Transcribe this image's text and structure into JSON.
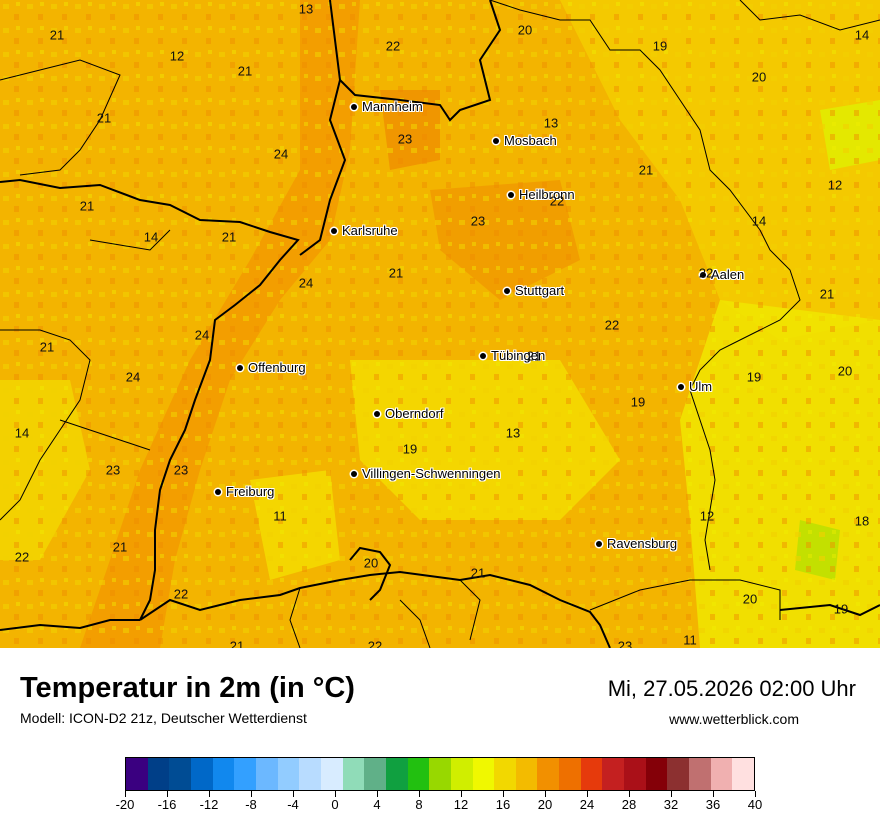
{
  "title": "Temperatur in 2m (in °C)",
  "model": "Modell: ICON-D2 21z, Deutscher Wetterdienst",
  "datetime": "Mi, 27.05.2026 02:00 Uhr",
  "website": "www.wetterblick.com",
  "cities": [
    {
      "name": "Mannheim"
    },
    {
      "name": "Mosbach"
    },
    {
      "name": "Heilbronn"
    },
    {
      "name": "Karlsruhe"
    },
    {
      "name": "Stuttgart"
    },
    {
      "name": "Aalen"
    },
    {
      "name": "Tübingen"
    },
    {
      "name": "Ulm"
    },
    {
      "name": "Offenburg"
    },
    {
      "name": "Oberndorf"
    },
    {
      "name": "Villingen-Schwenningen"
    },
    {
      "name": "Freiburg"
    },
    {
      "name": "Ravensburg"
    }
  ],
  "temperature_values": [
    "13",
    "20",
    "19",
    "14",
    "21",
    "22",
    "12",
    "21",
    "20",
    "21",
    "13",
    "21",
    "12",
    "24",
    "23",
    "21",
    "23",
    "14",
    "22",
    "14",
    "21",
    "24",
    "21",
    "22",
    "22",
    "21",
    "24",
    "21",
    "24",
    "21",
    "20",
    "19",
    "19",
    "14",
    "19",
    "13",
    "23",
    "23",
    "11",
    "12",
    "18",
    "22",
    "21",
    "20",
    "21",
    "22",
    "20",
    "19",
    "21",
    "22",
    "23",
    "11"
  ],
  "legend": {
    "min": -20,
    "max": 40,
    "step": 2,
    "tick_labels": [
      "-20",
      "-16",
      "-12",
      "-8",
      "-4",
      "0",
      "4",
      "8",
      "12",
      "16",
      "20",
      "24",
      "28",
      "32",
      "36",
      "40"
    ],
    "colors": [
      "#3a0080",
      "#003f88",
      "#004c94",
      "#0068c8",
      "#1188ee",
      "#33a0ff",
      "#6cb8ff",
      "#92ccff",
      "#b8dcff",
      "#d8ecff",
      "#90dcb8",
      "#60b088",
      "#10a040",
      "#22c010",
      "#98d800",
      "#d0ee00",
      "#f0f800",
      "#f2d800",
      "#f3bb00",
      "#f29000",
      "#ee7000",
      "#e63a0c",
      "#c42020",
      "#aa1018",
      "#840008",
      "#8c3030",
      "#c07070",
      "#f0b0b0",
      "#ffe0e0"
    ]
  }
}
